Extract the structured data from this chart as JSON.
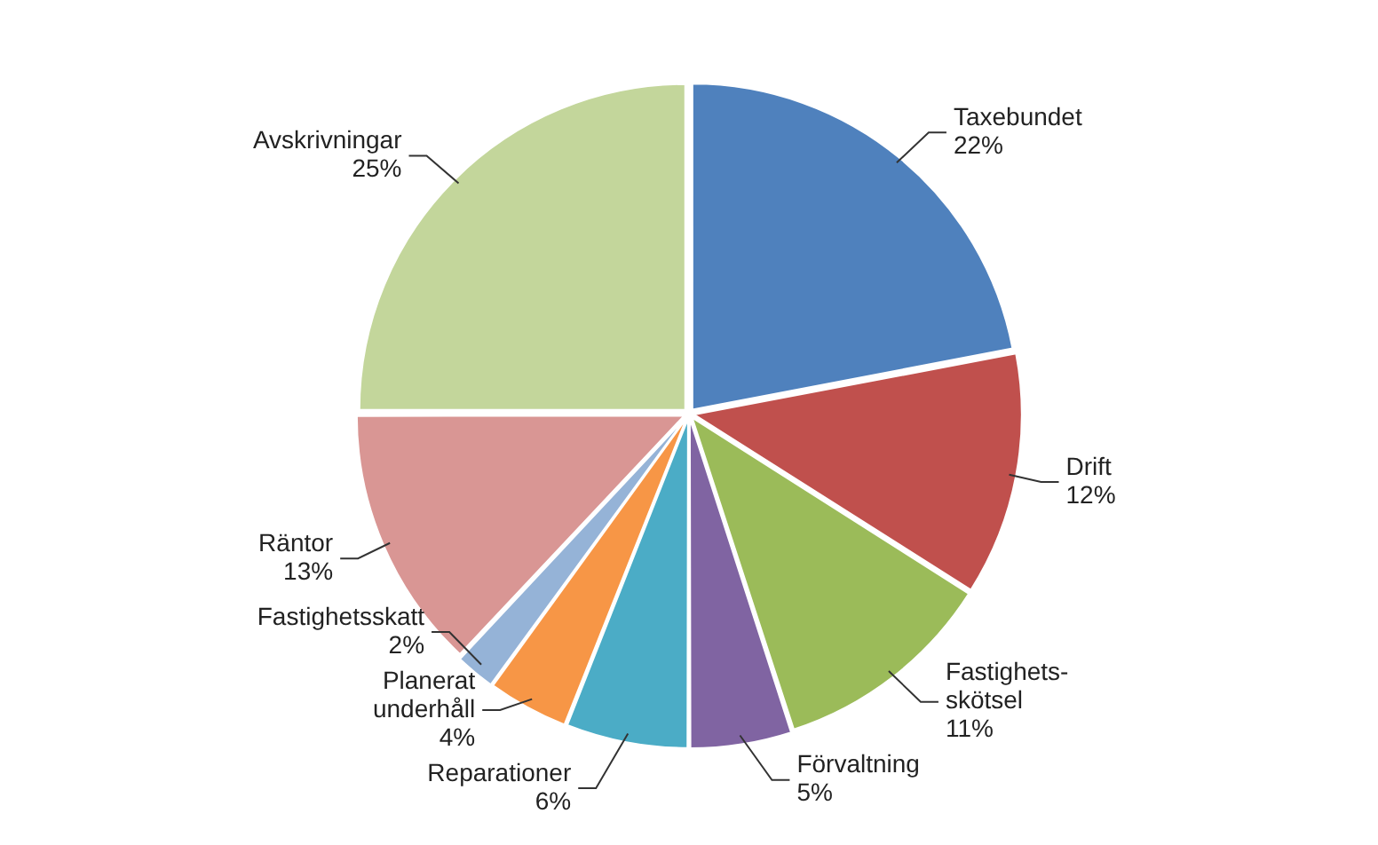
{
  "chart_data": {
    "type": "pie",
    "categories": [
      "Taxebundet",
      "Drift",
      "Fastighets-skötsel",
      "Förvaltning",
      "Reparationer",
      "Planerat underhåll",
      "Fastighetsskatt",
      "Räntor",
      "Avskrivningar"
    ],
    "values": [
      22,
      12,
      11,
      5,
      6,
      4,
      2,
      13,
      25
    ],
    "value_labels": [
      "22%",
      "12%",
      "11%",
      "5%",
      "6%",
      "4%",
      "2%",
      "13%",
      "25%"
    ],
    "colors": [
      "#4f81bd",
      "#c0504d",
      "#9bbb59",
      "#8064a2",
      "#4bacc6",
      "#f79646",
      "#95b3d7",
      "#d99694",
      "#c3d69b"
    ],
    "legend": false
  }
}
